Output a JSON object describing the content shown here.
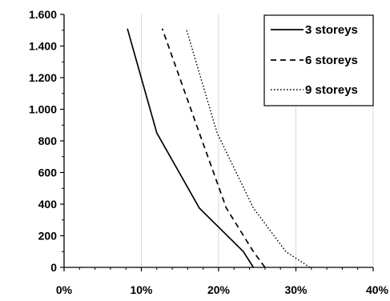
{
  "chart_data": {
    "type": "line",
    "title": "",
    "xlabel": "",
    "ylabel": "",
    "xlim": [
      0,
      40
    ],
    "ylim": [
      0,
      1600
    ],
    "x_ticks": [
      0,
      10,
      20,
      30,
      40
    ],
    "x_tick_labels": [
      "0%",
      "10%",
      "20%",
      "30%",
      "40%"
    ],
    "y_ticks": [
      0,
      200,
      400,
      600,
      800,
      1000,
      1200,
      1400,
      1600
    ],
    "y_tick_labels": [
      "0",
      "200",
      "400",
      "600",
      "800",
      "1.000",
      "1.200",
      "1.400",
      "1.600"
    ],
    "grid": "vertical",
    "legend_position": "top-right",
    "series": [
      {
        "name": "3 storeys",
        "style": "solid",
        "points": [
          [
            24.5,
            0
          ],
          [
            23.2,
            100
          ],
          [
            17.5,
            375
          ],
          [
            12.0,
            850
          ],
          [
            8.2,
            1510
          ]
        ]
      },
      {
        "name": "6 storeys",
        "style": "dashed",
        "points": [
          [
            26.0,
            0
          ],
          [
            24.5,
            100
          ],
          [
            21.0,
            375
          ],
          [
            17.5,
            850
          ],
          [
            12.7,
            1510
          ]
        ]
      },
      {
        "name": "9 storeys",
        "style": "dotted",
        "points": [
          [
            31.8,
            0
          ],
          [
            28.7,
            100
          ],
          [
            24.5,
            375
          ],
          [
            19.8,
            850
          ],
          [
            15.8,
            1510
          ]
        ]
      }
    ]
  }
}
